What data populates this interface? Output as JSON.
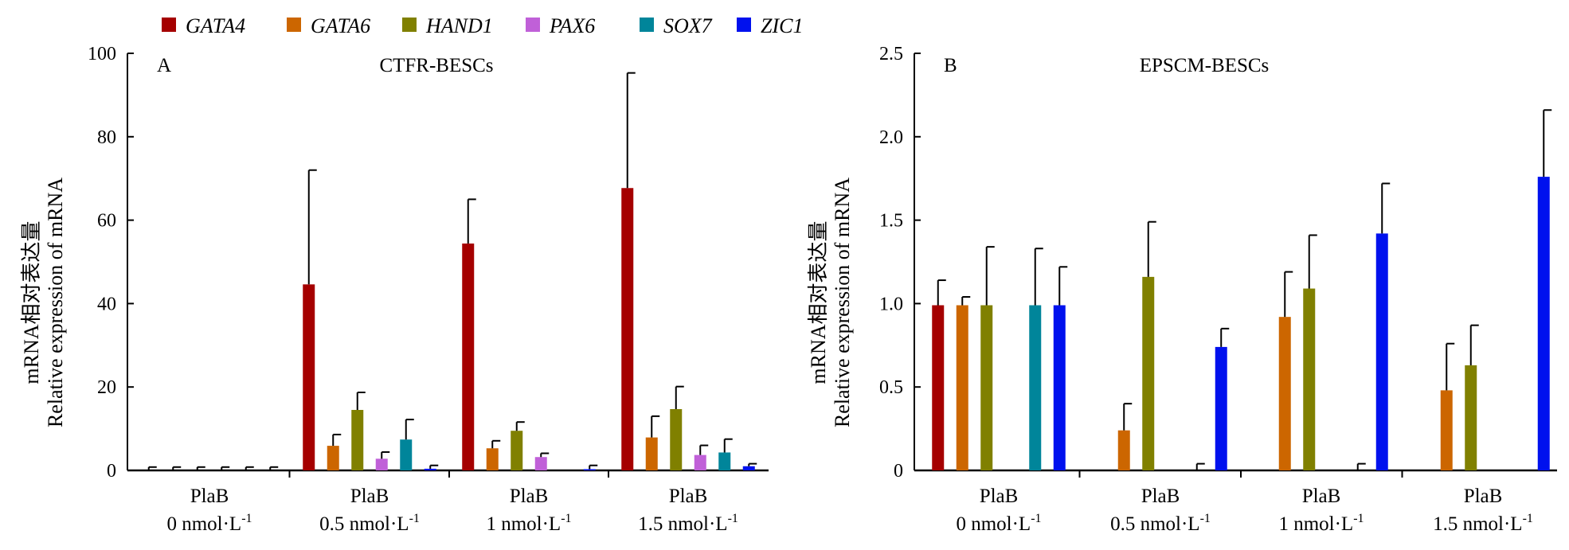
{
  "legend": [
    {
      "name": "GATA4",
      "color": "#a50000"
    },
    {
      "name": "GATA6",
      "color": "#cc6600"
    },
    {
      "name": "HAND1",
      "color": "#808000"
    },
    {
      "name": "PAX6",
      "color": "#c060d8"
    },
    {
      "name": "SOX7",
      "color": "#00859a"
    },
    {
      "name": "ZIC1",
      "color": "#0011ee"
    }
  ],
  "chart_data": [
    {
      "type": "bar",
      "panel": "A",
      "title": "CTFR-BESCs",
      "ylabel_line1": "mRNA相对表达量",
      "ylabel_line2": "Relative expression of mRNA",
      "ylim": [
        0,
        100
      ],
      "yticks": [
        "0",
        "20",
        "40",
        "60",
        "80",
        "100"
      ],
      "categories": [
        {
          "line1": "PlaB",
          "line2": "0 nmol·L",
          "sup": "-1"
        },
        {
          "line1": "PlaB",
          "line2": "0.5 nmol·L",
          "sup": "-1"
        },
        {
          "line1": "PlaB",
          "line2": "1 nmol·L",
          "sup": "-1"
        },
        {
          "line1": "PlaB",
          "line2": "1.5 nmol·L",
          "sup": "-1"
        }
      ],
      "series": [
        {
          "name": "GATA4",
          "values": [
            0,
            44.6,
            54.4,
            67.7
          ],
          "errors": [
            0.8,
            27.4,
            10.6,
            27.6
          ]
        },
        {
          "name": "GATA6",
          "values": [
            0,
            5.9,
            5.3,
            7.9
          ],
          "errors": [
            0.8,
            2.7,
            1.8,
            5.1
          ]
        },
        {
          "name": "HAND1",
          "values": [
            0,
            14.5,
            9.5,
            14.7
          ],
          "errors": [
            0.8,
            4.2,
            2.1,
            5.4
          ]
        },
        {
          "name": "PAX6",
          "values": [
            0,
            2.8,
            3.2,
            3.7
          ],
          "errors": [
            0.8,
            1.6,
            0.9,
            2.3
          ]
        },
        {
          "name": "SOX7",
          "values": [
            0,
            7.4,
            0,
            4.3
          ],
          "errors": [
            0.8,
            4.8,
            0,
            3.2
          ]
        },
        {
          "name": "ZIC1",
          "values": [
            0,
            0.4,
            0.3,
            1.0
          ],
          "errors": [
            0.8,
            0.8,
            0.9,
            0.6
          ]
        }
      ]
    },
    {
      "type": "bar",
      "panel": "B",
      "title": "EPSCM-BESCs",
      "ylabel_line1": "mRNA相对表达量",
      "ylabel_line2": "Relative expression of mRNA",
      "ylim": [
        0,
        2.5
      ],
      "yticks": [
        "0",
        "0.5",
        "1.0",
        "1.5",
        "2.0",
        "2.5"
      ],
      "categories": [
        {
          "line1": "PlaB",
          "line2": "0 nmol·L",
          "sup": "-1"
        },
        {
          "line1": "PlaB",
          "line2": "0.5 nmol·L",
          "sup": "-1"
        },
        {
          "line1": "PlaB",
          "line2": "1 nmol·L",
          "sup": "-1"
        },
        {
          "line1": "PlaB",
          "line2": "1.5 nmol·L",
          "sup": "-1"
        }
      ],
      "series": [
        {
          "name": "GATA4",
          "values": [
            0.99,
            0,
            0,
            0
          ],
          "errors": [
            0.15,
            0,
            0,
            0
          ]
        },
        {
          "name": "GATA6",
          "values": [
            0.99,
            0.24,
            0.92,
            0.48
          ],
          "errors": [
            0.05,
            0.16,
            0.27,
            0.28
          ]
        },
        {
          "name": "HAND1",
          "values": [
            0.99,
            1.16,
            1.09,
            0.63
          ],
          "errors": [
            0.35,
            0.33,
            0.32,
            0.24
          ]
        },
        {
          "name": "PAX6",
          "values": [
            0,
            0,
            0,
            0
          ],
          "errors": [
            0,
            0,
            0,
            0
          ]
        },
        {
          "name": "SOX7",
          "values": [
            0.99,
            0,
            0,
            0
          ],
          "errors": [
            0.34,
            0.04,
            0.04,
            0
          ]
        },
        {
          "name": "ZIC1",
          "values": [
            0.99,
            0.74,
            1.42,
            1.76
          ],
          "errors": [
            0.23,
            0.11,
            0.3,
            0.4
          ]
        }
      ]
    }
  ]
}
